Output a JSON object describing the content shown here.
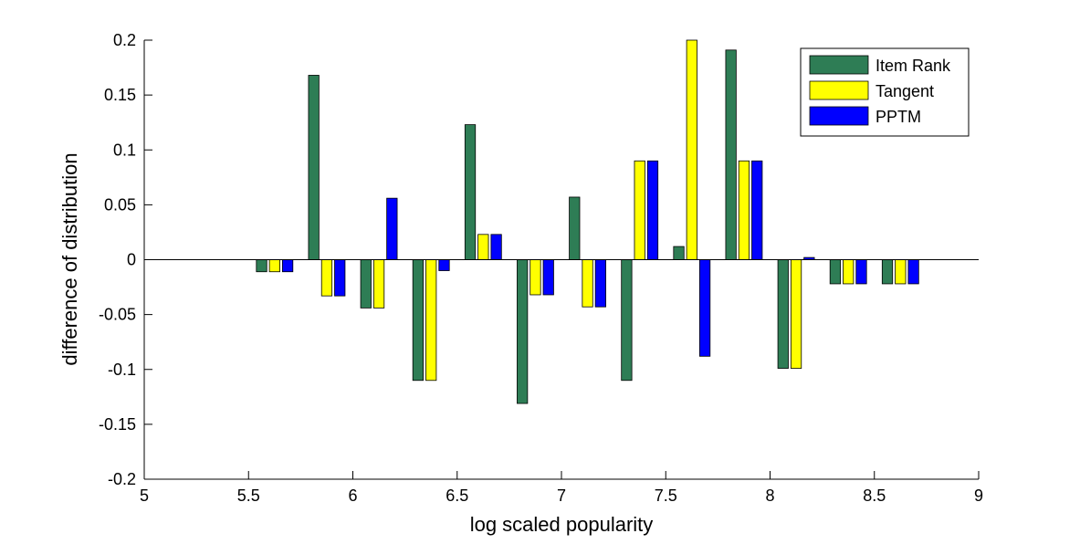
{
  "chart_data": {
    "type": "bar",
    "title": "",
    "xlabel": "log scaled popularity",
    "ylabel": "difference of distribution",
    "xlim": [
      5,
      9
    ],
    "ylim": [
      -0.2,
      0.2
    ],
    "xticks": [
      5,
      5.5,
      6,
      6.5,
      7,
      7.5,
      8,
      8.5,
      9
    ],
    "xtick_labels": [
      "5",
      "5.5",
      "6",
      "6.5",
      "7",
      "7.5",
      "8",
      "8.5",
      "9"
    ],
    "yticks": [
      -0.2,
      -0.15,
      -0.1,
      -0.05,
      0,
      0.05,
      0.1,
      0.15,
      0.2
    ],
    "ytick_labels": [
      "-0.2",
      "-0.15",
      "-0.1",
      "-0.05",
      "0",
      "0.05",
      "0.1",
      "0.15",
      "0.2"
    ],
    "grid": false,
    "legend_position": "top-right",
    "x": [
      5.625,
      5.875,
      6.125,
      6.375,
      6.625,
      6.875,
      7.125,
      7.375,
      7.625,
      7.875,
      8.125,
      8.375,
      8.625
    ],
    "bar_group_width": 0.25,
    "series": [
      {
        "name": "Item Rank",
        "color": "#2e7d55",
        "values": [
          -0.011,
          0.168,
          -0.044,
          -0.11,
          0.123,
          -0.131,
          0.057,
          -0.11,
          0.012,
          0.191,
          -0.099,
          -0.022,
          -0.022
        ]
      },
      {
        "name": "Tangent",
        "color": "#ffff00",
        "values": [
          -0.011,
          -0.033,
          -0.044,
          -0.11,
          0.023,
          -0.032,
          -0.043,
          0.09,
          0.2,
          0.09,
          -0.099,
          -0.022,
          -0.022
        ]
      },
      {
        "name": "PPTM",
        "color": "#0000ff",
        "values": [
          -0.011,
          -0.033,
          0.056,
          -0.01,
          0.023,
          -0.032,
          -0.043,
          0.09,
          -0.088,
          0.09,
          0.002,
          -0.022,
          -0.022
        ]
      }
    ]
  }
}
